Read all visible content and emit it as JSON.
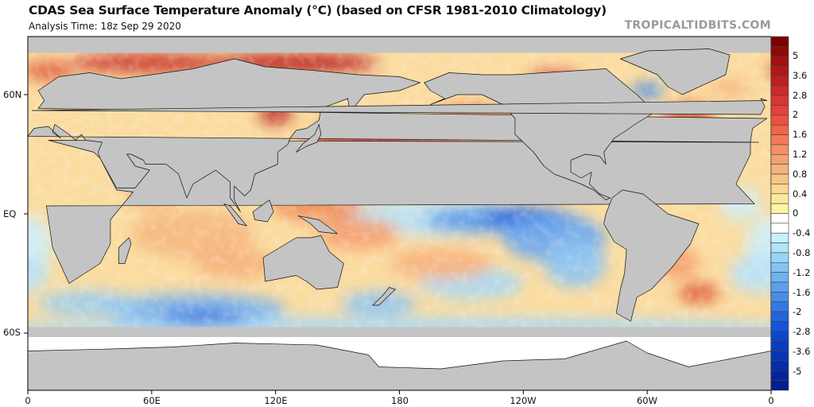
{
  "header": {
    "title": "CDAS Sea Surface Temperature Anomaly (°C) (based on CFSR 1981-2010 Climatology)",
    "subtitle": "Analysis Time: 18z Sep 29 2020",
    "watermark": "TROPICALTIDBITS.COM"
  },
  "map": {
    "projection": "equirectangular",
    "center_longitude": 180,
    "x_ticks": [
      "0",
      "60E",
      "120E",
      "180",
      "120W",
      "60W",
      "0"
    ],
    "y_ticks": [
      "60N",
      "EQ",
      "60S"
    ],
    "land_color": "#c4c4c4",
    "sea_ice_color": "#ffffff"
  },
  "colorbar": {
    "unit": "°C",
    "labels": [
      "5",
      "3.6",
      "2.8",
      "2",
      "1.6",
      "1.2",
      "0.8",
      "0.4",
      "0",
      "-0.4",
      "-0.8",
      "-1.2",
      "-1.6",
      "-2",
      "-2.8",
      "-3.6",
      "-5"
    ],
    "colors": [
      "#7a0000",
      "#8b0a0a",
      "#a01010",
      "#b01818",
      "#be2020",
      "#cc2a2a",
      "#d83535",
      "#e34040",
      "#eb5040",
      "#f06448",
      "#f27a58",
      "#f48e68",
      "#f5a070",
      "#f6b27e",
      "#f8c486",
      "#fad894",
      "#fce89a",
      "#fdf4a8",
      "#ffffff",
      "#ffffff",
      "#c8f0fb",
      "#b0e4f8",
      "#98d4f5",
      "#84c4f2",
      "#6eb2ee",
      "#5ca0ea",
      "#4a8ce6",
      "#3478e2",
      "#2464de",
      "#1654d8",
      "#0c46cc",
      "#0a3cc0",
      "#0834b2",
      "#062ca6",
      "#04249a",
      "#041e90"
    ]
  }
}
